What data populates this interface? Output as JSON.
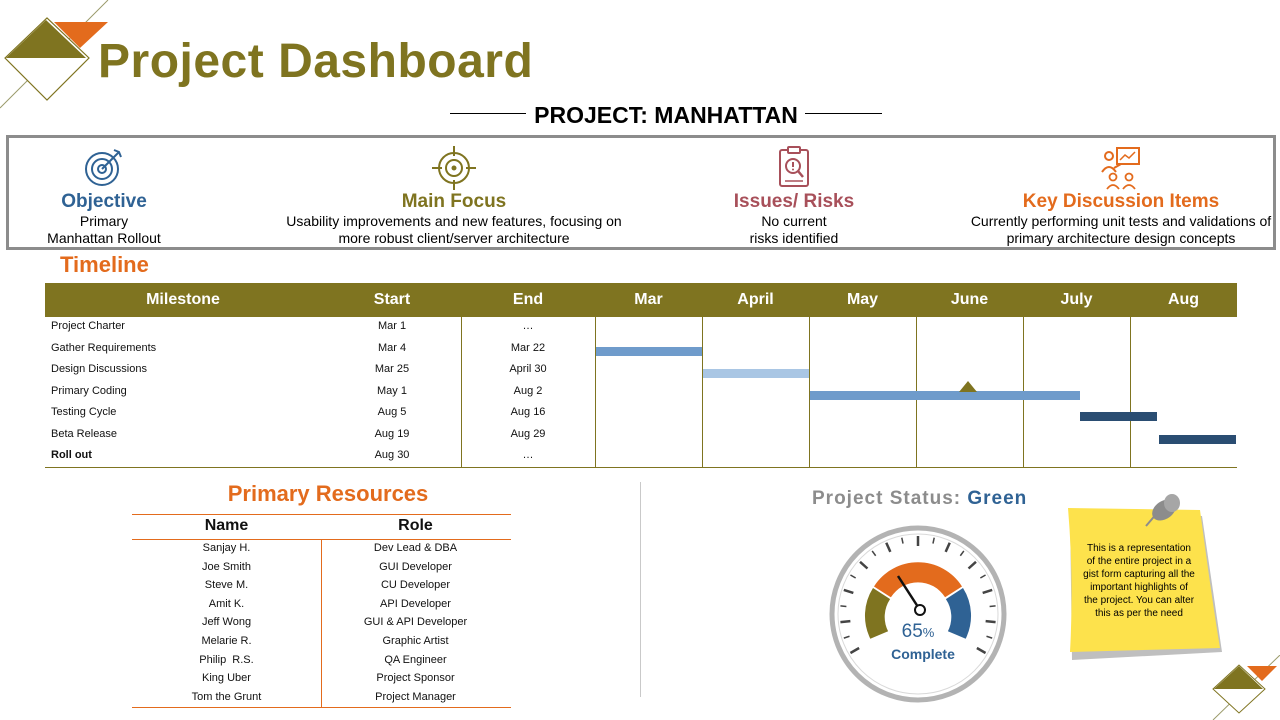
{
  "title": "Project Dashboard",
  "project_name": "PROJECT: MANHATTAN",
  "summary": [
    {
      "heading": "Objective",
      "line1": "Primary",
      "line2": "Manhattan Rollout",
      "color": "#2f6294",
      "icon": "target-arrow-icon"
    },
    {
      "heading": "Main Focus",
      "line1": "Usability improvements and new features, focusing on",
      "line2": "more robust client/server architecture",
      "color": "#7f7420",
      "icon": "crosshair-icon"
    },
    {
      "heading": "Issues/ Risks",
      "line1": "No current",
      "line2": "risks identified",
      "color": "#a8505a",
      "icon": "clipboard-warning-icon"
    },
    {
      "heading": "Key Discussion Items",
      "line1": "Currently performing unit tests and validations of",
      "line2": "primary architecture design concepts",
      "color": "#e36b1d",
      "icon": "meeting-presentation-icon"
    }
  ],
  "timeline": {
    "title": "Timeline",
    "headers": [
      "Milestone",
      "Start",
      "End",
      "Mar",
      "April",
      "May",
      "June",
      "July",
      "Aug"
    ],
    "rows": [
      {
        "milestone": "Project Charter",
        "start": "Mar 1",
        "end": "…"
      },
      {
        "milestone": "Gather Requirements",
        "start": "Mar 4",
        "end": "Mar 22"
      },
      {
        "milestone": "Design Discussions",
        "start": "Mar 25",
        "end": "April 30"
      },
      {
        "milestone": "Primary Coding",
        "start": "May 1",
        "end": "Aug 2"
      },
      {
        "milestone": "Testing Cycle",
        "start": "Aug 5",
        "end": "Aug 16"
      },
      {
        "milestone": "Beta Release",
        "start": "Aug 19",
        "end": "Aug 29"
      },
      {
        "milestone": "Roll out",
        "start": "Aug 30",
        "end": "…"
      }
    ],
    "colors": {
      "header": "#7f7420",
      "bar_medium": "#6f9bcb",
      "bar_light": "#a9c6e4",
      "bar_dark": "#2a4d72"
    }
  },
  "resources": {
    "title": "Primary Resources",
    "headers": [
      "Name",
      "Role"
    ],
    "rows": [
      {
        "name": "Sanjay H.",
        "role": "Dev Lead & DBA"
      },
      {
        "name": "Joe Smith",
        "role": "GUI Developer"
      },
      {
        "name": "Steve M.",
        "role": "CU Developer"
      },
      {
        "name": "Amit K.",
        "role": "API Developer"
      },
      {
        "name": "Jeff Wong",
        "role": "GUI & API Developer"
      },
      {
        "name": "Melarie R.",
        "role": "Graphic Artist"
      },
      {
        "name": "Philip  R.S.",
        "role": "QA Engineer"
      },
      {
        "name": "King Uber",
        "role": "Project Sponsor"
      },
      {
        "name": "Tom the Grunt",
        "role": "Project Manager"
      }
    ]
  },
  "status": {
    "label": "Project Status:",
    "value": "Green",
    "percent": "65",
    "percent_sign": "%",
    "complete_label": "Complete",
    "progress": 0.65
  },
  "note": {
    "text": "This is a representation of the entire project in a gist form capturing all the important highlights of the project. You can alter this as per the need"
  }
}
